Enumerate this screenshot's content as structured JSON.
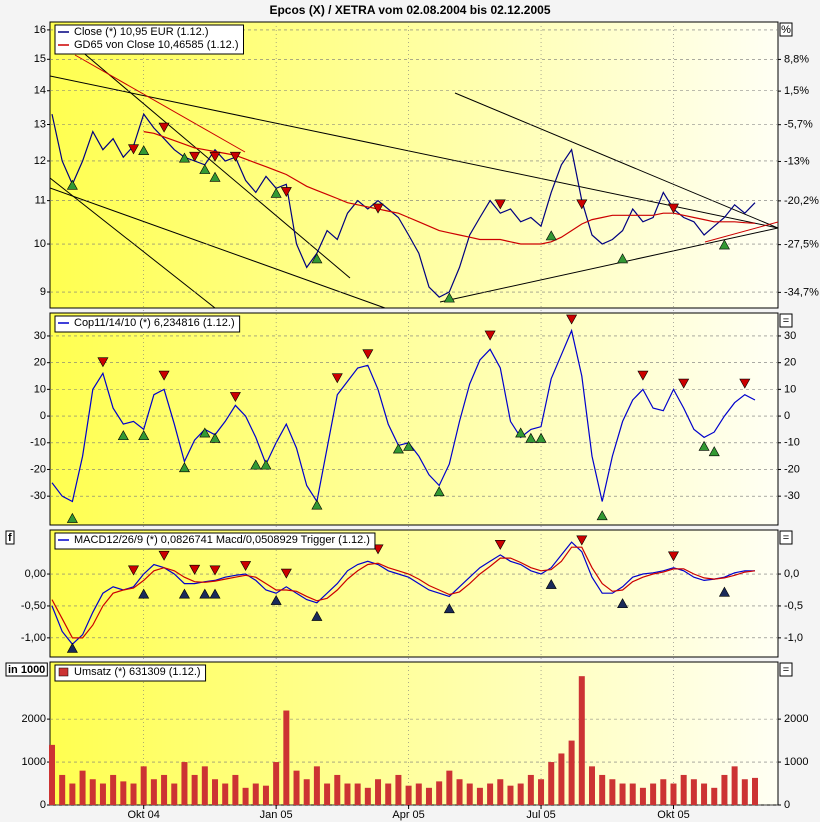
{
  "chart_data": [
    {
      "type": "line",
      "title": "Epcos (X) / XETRA vom 02.08.2004 bis 02.12.2005",
      "log": true,
      "ylim": [
        8.69,
        16.28
      ],
      "yticks": [
        9,
        10,
        11,
        12,
        13,
        14,
        15,
        16
      ],
      "y2label": "%",
      "y2lim": [
        -36.9,
        18.1
      ],
      "y2ticks": [
        {
          "value": 8.8,
          "label": "8,8%"
        },
        {
          "value": 1.5,
          "label": "1,5%"
        },
        {
          "value": -5.7,
          "label": "-5,7%"
        },
        {
          "value": -13,
          "label": "-13%"
        },
        {
          "value": -20.2,
          "label": "-20,2%"
        },
        {
          "value": -27.5,
          "label": "-27,5%"
        },
        {
          "value": -34.7,
          "label": "-34,7%"
        }
      ],
      "grid": true,
      "sell_color": "#cc0000",
      "buy_color": "#339933",
      "series": [
        {
          "name": "Close (*) 10,95 EUR (1.12.)",
          "color": "#000080",
          "values": [
            13.3,
            12.0,
            11.4,
            12.0,
            12.8,
            12.3,
            12.6,
            12.1,
            12.4,
            13.3,
            12.9,
            12.6,
            12.3,
            12.1,
            12.0,
            11.9,
            12.3,
            12.0,
            12.1,
            11.5,
            11.2,
            11.6,
            11.3,
            11.4,
            10.0,
            9.5,
            9.8,
            10.3,
            10.1,
            10.7,
            11.0,
            10.8,
            11.0,
            10.8,
            10.6,
            10.2,
            9.8,
            9.1,
            8.9,
            9.0,
            9.5,
            10.2,
            10.6,
            11.0,
            10.7,
            10.8,
            10.5,
            10.6,
            10.4,
            11.2,
            11.9,
            12.3,
            11.0,
            10.2,
            10.0,
            10.1,
            10.3,
            10.8,
            10.5,
            10.6,
            11.2,
            10.8,
            10.6,
            10.5,
            10.2,
            10.4,
            10.6,
            10.9,
            10.7,
            10.95
          ]
        },
        {
          "name": "GD65 von Close 10,46585 (1.12.)",
          "color": "#cc0000",
          "values": [
            null,
            null,
            null,
            null,
            null,
            null,
            null,
            null,
            null,
            12.8,
            12.75,
            12.65,
            12.55,
            12.45,
            12.35,
            12.3,
            12.25,
            12.2,
            12.15,
            12.05,
            11.95,
            11.85,
            11.75,
            11.65,
            11.5,
            11.35,
            11.25,
            11.15,
            11.05,
            10.95,
            10.9,
            10.85,
            10.8,
            10.75,
            10.7,
            10.6,
            10.5,
            10.4,
            10.3,
            10.25,
            10.2,
            10.15,
            10.1,
            10.1,
            10.1,
            10.05,
            10.0,
            10.0,
            10.0,
            10.05,
            10.15,
            10.3,
            10.45,
            10.55,
            10.6,
            10.65,
            10.65,
            10.65,
            10.65,
            10.65,
            10.7,
            10.7,
            10.65,
            10.6,
            10.55,
            10.5,
            10.5,
            10.5,
            10.48,
            10.46585
          ]
        }
      ],
      "sell_signals": [
        null,
        null,
        null,
        null,
        null,
        null,
        null,
        null,
        12.3,
        null,
        null,
        12.9,
        null,
        null,
        12.1,
        null,
        12.1,
        null,
        12.1,
        null,
        null,
        null,
        null,
        11.2,
        null,
        null,
        null,
        null,
        null,
        null,
        null,
        null,
        10.8,
        null,
        null,
        null,
        null,
        null,
        null,
        null,
        null,
        null,
        null,
        null,
        10.9,
        null,
        null,
        null,
        null,
        null,
        null,
        null,
        10.9,
        null,
        null,
        null,
        null,
        null,
        null,
        null,
        null,
        10.8,
        null,
        null,
        null,
        null,
        null,
        null,
        null,
        null
      ],
      "buy_signals": [
        null,
        null,
        11.4,
        null,
        null,
        null,
        null,
        null,
        null,
        12.3,
        null,
        null,
        null,
        12.1,
        null,
        11.8,
        11.6,
        null,
        null,
        null,
        null,
        null,
        11.2,
        null,
        null,
        null,
        9.7,
        null,
        null,
        null,
        null,
        null,
        null,
        null,
        null,
        null,
        null,
        null,
        null,
        8.9,
        null,
        null,
        null,
        null,
        null,
        null,
        null,
        null,
        null,
        10.2,
        null,
        null,
        null,
        null,
        null,
        null,
        9.7,
        null,
        null,
        null,
        null,
        null,
        null,
        null,
        null,
        null,
        10.0,
        null,
        null,
        null
      ]
    },
    {
      "type": "line",
      "ylim": [
        -40.8,
        38.6
      ],
      "yticks": [
        30,
        20,
        10,
        0,
        -10,
        -20,
        -30
      ],
      "y2label": "=",
      "y2ticks": [
        30,
        20,
        10,
        0,
        -10,
        -20,
        -30
      ],
      "grid": true,
      "sell_color": "#cc0000",
      "buy_color": "#339933",
      "series": [
        {
          "name": "Cop11/14/10 (*) 6,234816 (1.12.)",
          "color": "#0000cc",
          "values": [
            -25,
            -30,
            -32,
            -15,
            10,
            16,
            3,
            -3,
            -2,
            -5,
            8,
            10,
            -3,
            -17,
            -9,
            -5,
            -7,
            -2,
            4,
            0,
            -8,
            -18,
            -10,
            -3,
            -12,
            -26,
            -32,
            -12,
            8,
            13,
            18,
            19,
            10,
            -3,
            -11,
            -10,
            -15,
            -22,
            -26,
            -18,
            -2,
            12,
            21,
            25,
            18,
            -2,
            -8,
            -5,
            -4,
            14,
            23,
            32,
            15,
            -15,
            -32,
            -15,
            -2,
            6,
            10,
            3,
            2,
            10,
            3,
            -5,
            -8,
            -6,
            0,
            5,
            8,
            6
          ]
        }
      ],
      "sell_signals": [
        null,
        null,
        null,
        null,
        null,
        20,
        null,
        null,
        null,
        null,
        null,
        15,
        null,
        null,
        null,
        null,
        null,
        null,
        7,
        null,
        null,
        null,
        null,
        null,
        null,
        null,
        null,
        null,
        14,
        null,
        null,
        23,
        null,
        null,
        null,
        null,
        null,
        null,
        null,
        null,
        null,
        null,
        null,
        30,
        null,
        null,
        null,
        null,
        null,
        null,
        null,
        36,
        null,
        null,
        null,
        null,
        null,
        null,
        15,
        null,
        null,
        null,
        12,
        null,
        null,
        null,
        null,
        null,
        12,
        null
      ],
      "buy_signals": [
        null,
        null,
        -38,
        null,
        null,
        null,
        null,
        -7,
        null,
        -7,
        null,
        null,
        null,
        -19,
        null,
        -6,
        -8,
        null,
        null,
        null,
        -18,
        -18,
        null,
        null,
        null,
        null,
        -33,
        null,
        null,
        null,
        null,
        null,
        null,
        null,
        -12,
        -11,
        null,
        null,
        -28,
        null,
        null,
        null,
        null,
        null,
        null,
        null,
        -6,
        -8,
        -8,
        null,
        null,
        null,
        null,
        null,
        -37,
        null,
        null,
        null,
        null,
        null,
        null,
        null,
        null,
        null,
        -11,
        -13,
        null,
        null,
        null,
        null
      ]
    },
    {
      "type": "line",
      "legend": "MACD12/26/9 (*) 0,0826741 Macd/0,0508929 Trigger (1.12.)",
      "ylabel": "f",
      "y2label": "=",
      "ylim": [
        -1.3,
        0.69
      ],
      "yticks": [
        {
          "value": 0,
          "label": "0,00"
        },
        {
          "value": -0.5,
          "label": "-0,50"
        },
        {
          "value": -1,
          "label": "-1,00"
        }
      ],
      "y2ticks": [
        {
          "value": 0,
          "label": "0,0"
        },
        {
          "value": -0.5,
          "label": "-0,5"
        },
        {
          "value": -1,
          "label": "-1,0"
        }
      ],
      "grid": true,
      "sell_color": "#cc0000",
      "buy_color": "#1a2a5a",
      "series": [
        {
          "color": "#0000cc",
          "values": [
            -0.5,
            -0.9,
            -1.1,
            -0.95,
            -0.6,
            -0.3,
            -0.2,
            -0.25,
            -0.2,
            0.0,
            0.15,
            0.1,
            0.0,
            -0.15,
            -0.15,
            -0.12,
            -0.1,
            -0.05,
            -0.02,
            0.0,
            -0.1,
            -0.25,
            -0.3,
            -0.2,
            -0.3,
            -0.4,
            -0.45,
            -0.3,
            -0.15,
            0.05,
            0.15,
            0.2,
            0.15,
            0.05,
            0.0,
            -0.05,
            -0.15,
            -0.25,
            -0.3,
            -0.35,
            -0.2,
            -0.05,
            0.1,
            0.2,
            0.3,
            0.2,
            0.15,
            0.05,
            0.0,
            0.1,
            0.3,
            0.5,
            0.35,
            -0.05,
            -0.3,
            -0.3,
            -0.2,
            -0.05,
            0.0,
            0.02,
            0.05,
            0.1,
            0.05,
            -0.05,
            -0.1,
            -0.08,
            -0.05,
            0.02,
            0.05,
            0.05
          ]
        },
        {
          "color": "#cc0000",
          "values": [
            -0.4,
            -0.7,
            -1.0,
            -1.0,
            -0.8,
            -0.5,
            -0.3,
            -0.25,
            -0.22,
            -0.1,
            0.05,
            0.1,
            0.05,
            -0.05,
            -0.12,
            -0.13,
            -0.11,
            -0.08,
            -0.05,
            -0.02,
            -0.05,
            -0.15,
            -0.25,
            -0.25,
            -0.27,
            -0.35,
            -0.42,
            -0.38,
            -0.25,
            -0.08,
            0.05,
            0.15,
            0.17,
            0.1,
            0.05,
            0.0,
            -0.08,
            -0.18,
            -0.25,
            -0.32,
            -0.28,
            -0.15,
            0.0,
            0.12,
            0.25,
            0.25,
            0.18,
            0.1,
            0.05,
            0.07,
            0.2,
            0.42,
            0.42,
            0.1,
            -0.15,
            -0.27,
            -0.25,
            -0.12,
            -0.05,
            0.0,
            0.03,
            0.08,
            0.08,
            0.0,
            -0.06,
            -0.08,
            -0.06,
            -0.02,
            0.03,
            0.05
          ]
        }
      ],
      "sell_signals": [
        null,
        null,
        null,
        null,
        null,
        null,
        null,
        null,
        0.05,
        null,
        null,
        0.28,
        null,
        null,
        0.06,
        null,
        0.05,
        null,
        null,
        0.12,
        null,
        null,
        null,
        0.0,
        null,
        null,
        null,
        null,
        null,
        null,
        null,
        null,
        0.38,
        null,
        null,
        null,
        null,
        null,
        null,
        null,
        null,
        null,
        null,
        null,
        0.45,
        null,
        null,
        null,
        null,
        null,
        null,
        null,
        0.52,
        null,
        null,
        null,
        null,
        null,
        null,
        null,
        null,
        0.27,
        null,
        null,
        null,
        null,
        null,
        null,
        null,
        null
      ],
      "buy_signals": [
        null,
        null,
        -1.15,
        null,
        null,
        null,
        null,
        null,
        null,
        -0.3,
        null,
        null,
        null,
        -0.3,
        null,
        -0.3,
        -0.3,
        null,
        null,
        null,
        null,
        null,
        -0.4,
        null,
        null,
        null,
        -0.65,
        null,
        null,
        null,
        null,
        null,
        null,
        null,
        null,
        null,
        null,
        null,
        null,
        -0.53,
        null,
        null,
        null,
        null,
        null,
        null,
        null,
        null,
        null,
        -0.15,
        null,
        null,
        null,
        null,
        null,
        null,
        -0.45,
        null,
        null,
        null,
        null,
        null,
        null,
        null,
        null,
        null,
        -0.27,
        null,
        null,
        null
      ]
    },
    {
      "type": "bar",
      "ylabel": "in 1000",
      "y2label": "=",
      "ylim": [
        0,
        3330
      ],
      "yticks": [
        0,
        1000,
        2000
      ],
      "y2ticks": [
        0,
        1000,
        2000
      ],
      "grid": true,
      "categories": [
        null,
        null,
        null,
        null,
        null,
        null,
        null,
        null,
        null,
        "Okt 04",
        null,
        null,
        null,
        null,
        null,
        null,
        null,
        null,
        null,
        null,
        null,
        null,
        "Jan 05",
        null,
        null,
        null,
        null,
        null,
        null,
        null,
        null,
        null,
        null,
        null,
        null,
        "Apr 05",
        null,
        null,
        null,
        null,
        null,
        null,
        null,
        null,
        null,
        null,
        null,
        null,
        "Jul 05",
        null,
        null,
        null,
        null,
        null,
        null,
        null,
        null,
        null,
        null,
        null,
        null,
        "Okt 05",
        null,
        null,
        null,
        null,
        null,
        null,
        null,
        null
      ],
      "series": [
        {
          "name": "Umsatz (*) 631309 (1.12.)",
          "color": "#cc3333",
          "values": [
            1400,
            700,
            500,
            800,
            600,
            500,
            700,
            550,
            500,
            900,
            600,
            700,
            500,
            1000,
            700,
            900,
            600,
            500,
            700,
            400,
            500,
            450,
            1000,
            2200,
            800,
            600,
            900,
            500,
            700,
            500,
            500,
            400,
            600,
            500,
            700,
            450,
            500,
            400,
            550,
            800,
            600,
            500,
            400,
            500,
            600,
            450,
            500,
            700,
            600,
            1000,
            1200,
            1500,
            3000,
            900,
            700,
            600,
            500,
            500,
            400,
            500,
            600,
            500,
            700,
            600,
            500,
            400,
            700,
            900,
            600,
            631.309
          ]
        }
      ]
    }
  ]
}
